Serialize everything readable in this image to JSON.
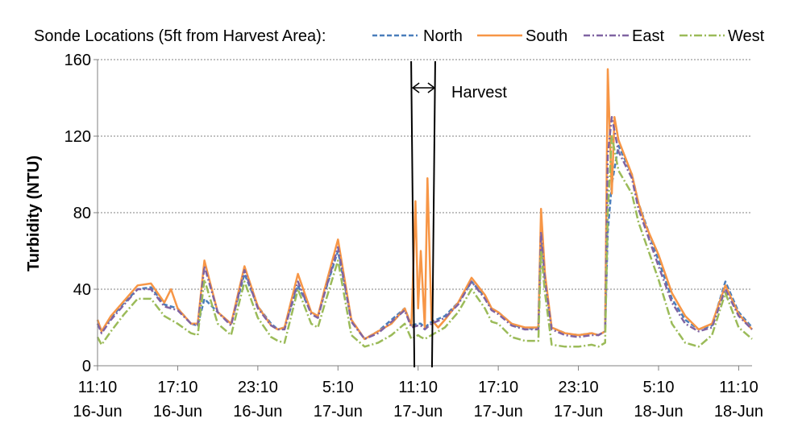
{
  "chart_data": {
    "type": "line",
    "title": "",
    "xlabel": "",
    "ylabel": "Turbidity (NTU)",
    "ylim": [
      0,
      160
    ],
    "yticks": [
      0,
      40,
      80,
      120,
      160
    ],
    "xlim_hours": [
      0,
      49
    ],
    "x_unit": "hours after 11:10 16-Jun",
    "xticks": [
      {
        "h": 0,
        "time": "11:10",
        "date": "16-Jun"
      },
      {
        "h": 6,
        "time": "17:10",
        "date": "16-Jun"
      },
      {
        "h": 12,
        "time": "23:10",
        "date": "16-Jun"
      },
      {
        "h": 18,
        "time": "5:10",
        "date": "17-Jun"
      },
      {
        "h": 24,
        "time": "11:10",
        "date": "17-Jun"
      },
      {
        "h": 30,
        "time": "17:10",
        "date": "17-Jun"
      },
      {
        "h": 36,
        "time": "23:10",
        "date": "17-Jun"
      },
      {
        "h": 42,
        "time": "5:10",
        "date": "18-Jun"
      },
      {
        "h": 48,
        "time": "11:10",
        "date": "18-Jun"
      }
    ],
    "grid": "horizontal",
    "legend": {
      "title": "Sonde Locations (5ft from Harvest Area):",
      "placement": "top"
    },
    "annotation": {
      "label": "Harvest",
      "start_h": 23.6,
      "end_h": 25.1
    },
    "series": [
      {
        "name": "North",
        "color": "#4a7ebb",
        "dash": "6,3",
        "x": [
          0,
          0.3,
          1,
          2,
          3,
          4,
          5,
          6,
          7,
          7.5,
          8,
          9,
          10,
          11,
          12,
          13,
          13.5,
          14,
          15,
          16,
          16.5,
          17,
          18,
          19,
          20,
          21,
          22,
          23,
          23.5,
          24,
          24.2,
          24.5,
          25,
          26,
          27,
          28,
          29,
          29.5,
          30,
          31,
          32,
          33,
          33.2,
          33.5,
          34,
          35,
          36,
          37,
          37.5,
          38,
          38.2,
          38.5,
          39,
          40,
          40.5,
          41,
          42,
          43,
          44,
          45,
          46,
          47,
          48,
          49
        ],
        "y": [
          24,
          18,
          25,
          33,
          40,
          41,
          32,
          30,
          22,
          21,
          35,
          28,
          22,
          48,
          31,
          22,
          19,
          20,
          42,
          28,
          26,
          38,
          60,
          24,
          14,
          18,
          24,
          30,
          21,
          22,
          22,
          20,
          23,
          26,
          33,
          44,
          36,
          30,
          28,
          22,
          19,
          20,
          68,
          45,
          20,
          17,
          16,
          17,
          16,
          18,
          70,
          95,
          115,
          100,
          85,
          75,
          55,
          35,
          24,
          19,
          21,
          44,
          28,
          20
        ]
      },
      {
        "name": "South",
        "color": "#f79646",
        "dash": "",
        "x": [
          0,
          0.3,
          1,
          2,
          3,
          4,
          5,
          5.5,
          6,
          7,
          7.5,
          8,
          9,
          10,
          11,
          12,
          13,
          13.5,
          14,
          15,
          16,
          16.5,
          17,
          18,
          19,
          20,
          21,
          22,
          23,
          23.5,
          23.8,
          24,
          24.2,
          24.5,
          24.7,
          25,
          25.5,
          26,
          27,
          28,
          29,
          29.5,
          30,
          31,
          32,
          33,
          33.2,
          33.5,
          34,
          35,
          36,
          37,
          37.5,
          38,
          38.2,
          38.5,
          38.7,
          39,
          40,
          40.5,
          41,
          42,
          43,
          44,
          45,
          46,
          47,
          48,
          49
        ],
        "y": [
          24,
          18,
          26,
          34,
          42,
          43,
          33,
          40,
          30,
          22,
          22,
          55,
          28,
          22,
          52,
          31,
          21,
          19,
          20,
          48,
          28,
          26,
          40,
          66,
          24,
          14,
          18,
          22,
          30,
          21,
          86,
          30,
          60,
          20,
          98,
          24,
          20,
          24,
          33,
          46,
          37,
          30,
          28,
          22,
          20,
          20,
          82,
          48,
          20,
          17,
          16,
          17,
          16,
          18,
          155,
          90,
          130,
          118,
          100,
          85,
          74,
          58,
          38,
          26,
          19,
          22,
          42,
          27,
          19
        ]
      },
      {
        "name": "East",
        "color": "#8064a2",
        "dash": "8,3,2,3",
        "x": [
          0,
          0.3,
          1,
          2,
          3,
          4,
          5,
          6,
          7,
          7.5,
          8,
          9,
          10,
          11,
          12,
          13,
          13.5,
          14,
          15,
          16,
          16.5,
          17,
          18,
          19,
          20,
          21,
          22,
          23,
          23.5,
          24,
          24.2,
          24.5,
          25,
          26,
          27,
          28,
          29,
          29.5,
          30,
          31,
          32,
          33,
          33.2,
          33.5,
          34,
          35,
          36,
          37,
          37.5,
          38,
          38.2,
          38.5,
          39,
          40,
          40.5,
          41,
          42,
          43,
          44,
          45,
          46,
          47,
          48,
          49
        ],
        "y": [
          22,
          17,
          24,
          32,
          40,
          40,
          31,
          29,
          22,
          21,
          52,
          28,
          21,
          50,
          30,
          21,
          19,
          19,
          44,
          27,
          25,
          38,
          62,
          23,
          14,
          17,
          23,
          29,
          20,
          21,
          21,
          19,
          22,
          25,
          32,
          44,
          35,
          29,
          27,
          21,
          19,
          19,
          70,
          44,
          19,
          16,
          15,
          16,
          16,
          18,
          110,
          130,
          112,
          98,
          82,
          72,
          52,
          33,
          22,
          18,
          20,
          40,
          26,
          19
        ]
      },
      {
        "name": "West",
        "color": "#9bbb59",
        "dash": "10,3,2,3",
        "x": [
          0,
          0.3,
          1,
          2,
          3,
          4,
          5,
          6,
          7,
          7.5,
          8,
          9,
          10,
          11,
          12,
          13,
          13.5,
          14,
          15,
          16,
          16.5,
          17,
          18,
          19,
          20,
          21,
          22,
          23,
          23.5,
          24,
          24.2,
          24.5,
          25,
          26,
          27,
          28,
          29,
          29.5,
          30,
          31,
          32,
          33,
          33.2,
          33.5,
          34,
          35,
          36,
          37,
          37.5,
          38,
          38.2,
          38.5,
          39,
          40,
          40.5,
          41,
          42,
          43,
          44,
          45,
          46,
          47,
          48,
          49
        ],
        "y": [
          15,
          11,
          18,
          27,
          35,
          35,
          26,
          22,
          17,
          16,
          45,
          22,
          16,
          44,
          25,
          15,
          13,
          12,
          40,
          22,
          20,
          32,
          55,
          16,
          10,
          12,
          16,
          22,
          14,
          16,
          15,
          14,
          16,
          20,
          28,
          40,
          30,
          23,
          22,
          15,
          13,
          13,
          60,
          38,
          11,
          10,
          10,
          11,
          10,
          12,
          80,
          120,
          102,
          90,
          75,
          65,
          45,
          22,
          12,
          10,
          16,
          38,
          20,
          14
        ]
      }
    ]
  }
}
